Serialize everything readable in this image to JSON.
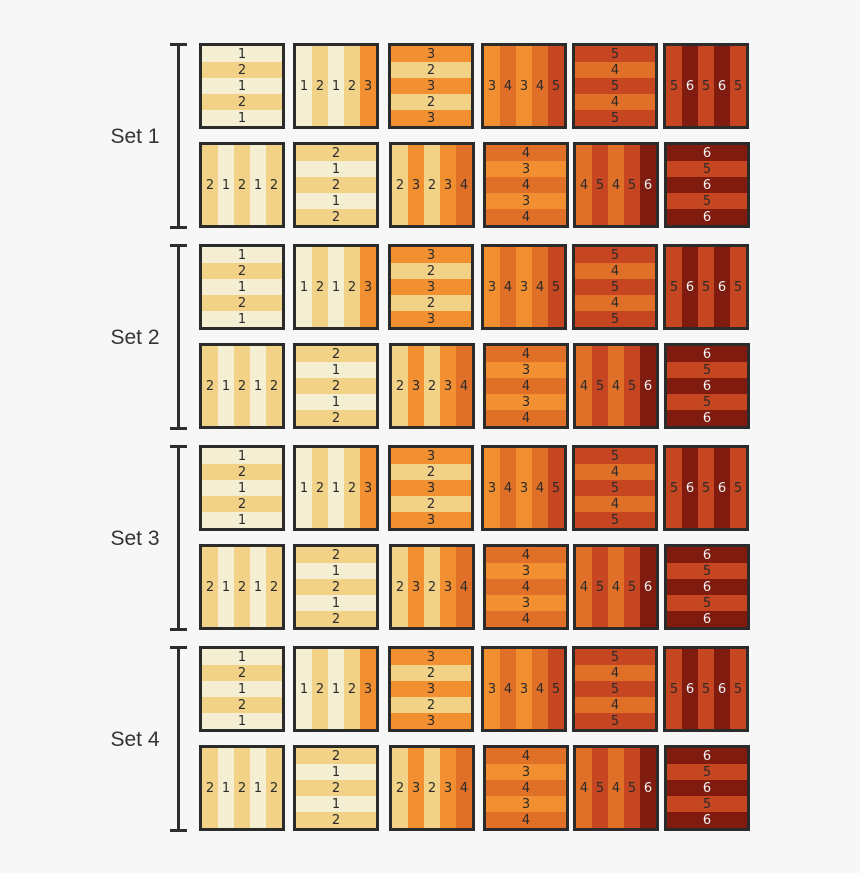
{
  "colors": {
    "1": "#f4efd2",
    "2": "#f2d287",
    "3": "#f28f30",
    "4": "#e07028",
    "5": "#c54621",
    "6": "#7f1c0f"
  },
  "sets": [
    {
      "label": "Set 1"
    },
    {
      "label": "Set 2"
    },
    {
      "label": "Set 3"
    },
    {
      "label": "Set 4"
    }
  ],
  "block_rows": [
    [
      {
        "orientation": "horizontal",
        "stripes": [
          1,
          2,
          1,
          2,
          1
        ]
      },
      {
        "orientation": "vertical",
        "stripes": [
          1,
          2,
          1,
          2,
          3
        ]
      },
      {
        "orientation": "horizontal",
        "stripes": [
          3,
          2,
          3,
          2,
          3
        ]
      },
      {
        "orientation": "vertical",
        "stripes": [
          3,
          4,
          3,
          4,
          5
        ]
      },
      {
        "orientation": "horizontal",
        "stripes": [
          5,
          4,
          5,
          4,
          5
        ]
      },
      {
        "orientation": "vertical",
        "stripes": [
          5,
          6,
          5,
          6,
          5
        ]
      }
    ],
    [
      {
        "orientation": "vertical",
        "stripes": [
          2,
          1,
          2,
          1,
          2
        ]
      },
      {
        "orientation": "horizontal",
        "stripes": [
          2,
          1,
          2,
          1,
          2
        ]
      },
      {
        "orientation": "vertical",
        "stripes": [
          2,
          3,
          2,
          3,
          4
        ]
      },
      {
        "orientation": "horizontal",
        "stripes": [
          4,
          3,
          4,
          3,
          4
        ]
      },
      {
        "orientation": "vertical",
        "stripes": [
          4,
          5,
          4,
          5,
          6
        ]
      },
      {
        "orientation": "horizontal",
        "stripes": [
          6,
          5,
          6,
          5,
          6
        ]
      }
    ]
  ]
}
